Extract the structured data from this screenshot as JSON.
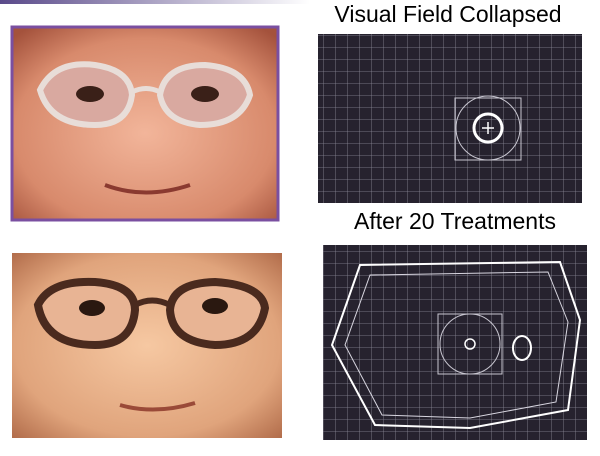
{
  "slide": {
    "top_caption": "Visual Field Collapsed",
    "bottom_caption": "After 20 Treatments"
  }
}
